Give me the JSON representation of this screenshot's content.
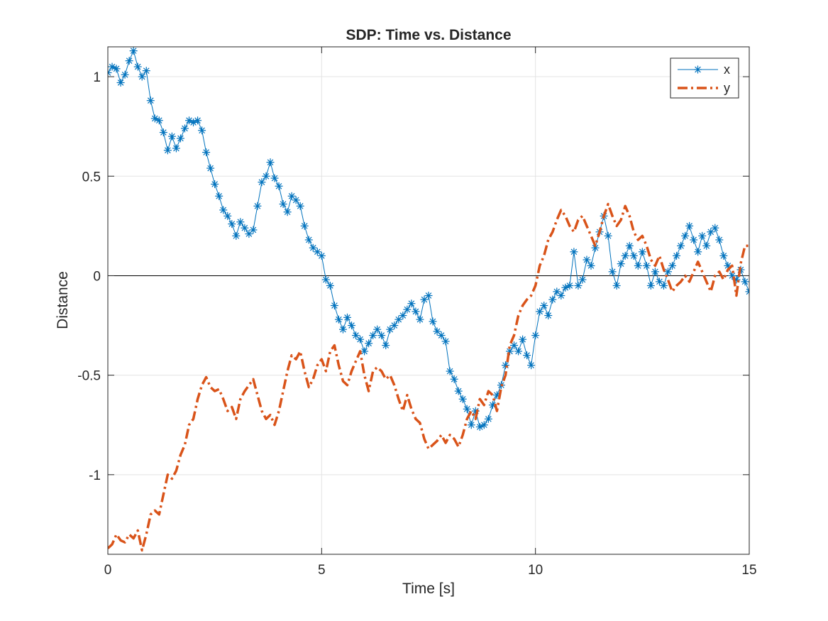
{
  "chart_data": {
    "type": "line",
    "title": "SDP: Time vs. Distance",
    "xlabel": "Time [s]",
    "ylabel": "Distance",
    "xlim": [
      0,
      15
    ],
    "ylim": [
      -1.4,
      1.15
    ],
    "xticks": [
      0,
      5,
      10,
      15
    ],
    "xtick_labels": [
      "0",
      "5",
      "10",
      "15"
    ],
    "yticks": [
      -1,
      -0.5,
      0,
      0.5,
      1
    ],
    "ytick_labels": [
      "-1",
      "-0.5",
      "0",
      "0.5",
      "1"
    ],
    "grid": true,
    "zero_line": true,
    "legend": "top-right",
    "series": [
      {
        "name": "x",
        "color": "#0072bd",
        "line_style": "solid",
        "marker": "asterisk",
        "points": [
          [
            0.0,
            1.02
          ],
          [
            0.1,
            1.05
          ],
          [
            0.2,
            1.04
          ],
          [
            0.3,
            0.97
          ],
          [
            0.4,
            1.01
          ],
          [
            0.5,
            1.08
          ],
          [
            0.6,
            1.13
          ],
          [
            0.7,
            1.05
          ],
          [
            0.8,
            1.0
          ],
          [
            0.9,
            1.03
          ],
          [
            1.0,
            0.88
          ],
          [
            1.1,
            0.79
          ],
          [
            1.2,
            0.78
          ],
          [
            1.3,
            0.72
          ],
          [
            1.4,
            0.63
          ],
          [
            1.5,
            0.7
          ],
          [
            1.6,
            0.64
          ],
          [
            1.7,
            0.69
          ],
          [
            1.8,
            0.74
          ],
          [
            1.9,
            0.78
          ],
          [
            2.0,
            0.77
          ],
          [
            2.1,
            0.78
          ],
          [
            2.2,
            0.73
          ],
          [
            2.3,
            0.62
          ],
          [
            2.4,
            0.54
          ],
          [
            2.5,
            0.46
          ],
          [
            2.6,
            0.4
          ],
          [
            2.7,
            0.33
          ],
          [
            2.8,
            0.3
          ],
          [
            2.9,
            0.26
          ],
          [
            3.0,
            0.2
          ],
          [
            3.1,
            0.27
          ],
          [
            3.2,
            0.24
          ],
          [
            3.3,
            0.21
          ],
          [
            3.4,
            0.23
          ],
          [
            3.5,
            0.35
          ],
          [
            3.6,
            0.47
          ],
          [
            3.7,
            0.5
          ],
          [
            3.8,
            0.57
          ],
          [
            3.9,
            0.49
          ],
          [
            4.0,
            0.45
          ],
          [
            4.1,
            0.36
          ],
          [
            4.2,
            0.32
          ],
          [
            4.3,
            0.4
          ],
          [
            4.4,
            0.38
          ],
          [
            4.5,
            0.35
          ],
          [
            4.6,
            0.25
          ],
          [
            4.7,
            0.18
          ],
          [
            4.8,
            0.14
          ],
          [
            4.9,
            0.12
          ],
          [
            5.0,
            0.1
          ],
          [
            5.1,
            -0.02
          ],
          [
            5.2,
            -0.05
          ],
          [
            5.3,
            -0.15
          ],
          [
            5.4,
            -0.22
          ],
          [
            5.5,
            -0.27
          ],
          [
            5.6,
            -0.21
          ],
          [
            5.7,
            -0.25
          ],
          [
            5.8,
            -0.3
          ],
          [
            5.9,
            -0.32
          ],
          [
            6.0,
            -0.38
          ],
          [
            6.1,
            -0.34
          ],
          [
            6.2,
            -0.3
          ],
          [
            6.3,
            -0.27
          ],
          [
            6.4,
            -0.3
          ],
          [
            6.5,
            -0.35
          ],
          [
            6.6,
            -0.27
          ],
          [
            6.7,
            -0.25
          ],
          [
            6.8,
            -0.22
          ],
          [
            6.9,
            -0.2
          ],
          [
            7.0,
            -0.17
          ],
          [
            7.1,
            -0.14
          ],
          [
            7.2,
            -0.18
          ],
          [
            7.3,
            -0.22
          ],
          [
            7.4,
            -0.12
          ],
          [
            7.5,
            -0.1
          ],
          [
            7.6,
            -0.23
          ],
          [
            7.7,
            -0.28
          ],
          [
            7.8,
            -0.3
          ],
          [
            7.9,
            -0.33
          ],
          [
            8.0,
            -0.48
          ],
          [
            8.1,
            -0.52
          ],
          [
            8.2,
            -0.58
          ],
          [
            8.3,
            -0.62
          ],
          [
            8.4,
            -0.67
          ],
          [
            8.5,
            -0.75
          ],
          [
            8.6,
            -0.68
          ],
          [
            8.7,
            -0.76
          ],
          [
            8.8,
            -0.75
          ],
          [
            8.9,
            -0.72
          ],
          [
            9.0,
            -0.65
          ],
          [
            9.1,
            -0.6
          ],
          [
            9.2,
            -0.55
          ],
          [
            9.3,
            -0.45
          ],
          [
            9.4,
            -0.38
          ],
          [
            9.5,
            -0.35
          ],
          [
            9.6,
            -0.38
          ],
          [
            9.7,
            -0.32
          ],
          [
            9.8,
            -0.4
          ],
          [
            9.9,
            -0.45
          ],
          [
            10.0,
            -0.3
          ],
          [
            10.1,
            -0.18
          ],
          [
            10.2,
            -0.15
          ],
          [
            10.3,
            -0.2
          ],
          [
            10.4,
            -0.12
          ],
          [
            10.5,
            -0.08
          ],
          [
            10.6,
            -0.1
          ],
          [
            10.7,
            -0.06
          ],
          [
            10.8,
            -0.05
          ],
          [
            10.9,
            0.12
          ],
          [
            11.0,
            -0.05
          ],
          [
            11.1,
            -0.02
          ],
          [
            11.2,
            0.08
          ],
          [
            11.3,
            0.05
          ],
          [
            11.4,
            0.14
          ],
          [
            11.5,
            0.22
          ],
          [
            11.6,
            0.3
          ],
          [
            11.7,
            0.2
          ],
          [
            11.8,
            0.02
          ],
          [
            11.9,
            -0.05
          ],
          [
            12.0,
            0.06
          ],
          [
            12.1,
            0.1
          ],
          [
            12.2,
            0.15
          ],
          [
            12.3,
            0.1
          ],
          [
            12.4,
            0.05
          ],
          [
            12.5,
            0.12
          ],
          [
            12.6,
            0.05
          ],
          [
            12.7,
            -0.05
          ],
          [
            12.8,
            0.02
          ],
          [
            12.9,
            -0.03
          ],
          [
            13.0,
            -0.05
          ],
          [
            13.1,
            0.02
          ],
          [
            13.2,
            0.05
          ],
          [
            13.3,
            0.1
          ],
          [
            13.4,
            0.15
          ],
          [
            13.5,
            0.2
          ],
          [
            13.6,
            0.25
          ],
          [
            13.7,
            0.18
          ],
          [
            13.8,
            0.12
          ],
          [
            13.9,
            0.2
          ],
          [
            14.0,
            0.15
          ],
          [
            14.1,
            0.22
          ],
          [
            14.2,
            0.24
          ],
          [
            14.3,
            0.18
          ],
          [
            14.4,
            0.1
          ],
          [
            14.5,
            0.05
          ],
          [
            14.6,
            0.0
          ],
          [
            14.7,
            -0.02
          ],
          [
            14.8,
            0.03
          ],
          [
            14.9,
            -0.03
          ],
          [
            15.0,
            -0.08
          ]
        ]
      },
      {
        "name": "y",
        "color": "#d95319",
        "line_style": "dash-dot",
        "marker": "none",
        "points": [
          [
            0.0,
            -1.37
          ],
          [
            0.1,
            -1.35
          ],
          [
            0.2,
            -1.3
          ],
          [
            0.3,
            -1.33
          ],
          [
            0.4,
            -1.34
          ],
          [
            0.5,
            -1.3
          ],
          [
            0.6,
            -1.32
          ],
          [
            0.7,
            -1.28
          ],
          [
            0.8,
            -1.38
          ],
          [
            0.9,
            -1.3
          ],
          [
            1.0,
            -1.2
          ],
          [
            1.1,
            -1.18
          ],
          [
            1.2,
            -1.2
          ],
          [
            1.3,
            -1.1
          ],
          [
            1.4,
            -1.0
          ],
          [
            1.5,
            -1.02
          ],
          [
            1.6,
            -0.98
          ],
          [
            1.7,
            -0.9
          ],
          [
            1.8,
            -0.85
          ],
          [
            1.9,
            -0.75
          ],
          [
            2.0,
            -0.72
          ],
          [
            2.1,
            -0.62
          ],
          [
            2.2,
            -0.55
          ],
          [
            2.3,
            -0.51
          ],
          [
            2.4,
            -0.56
          ],
          [
            2.5,
            -0.58
          ],
          [
            2.6,
            -0.57
          ],
          [
            2.7,
            -0.62
          ],
          [
            2.8,
            -0.68
          ],
          [
            2.9,
            -0.66
          ],
          [
            3.0,
            -0.72
          ],
          [
            3.1,
            -0.62
          ],
          [
            3.2,
            -0.58
          ],
          [
            3.3,
            -0.55
          ],
          [
            3.4,
            -0.52
          ],
          [
            3.5,
            -0.6
          ],
          [
            3.6,
            -0.68
          ],
          [
            3.7,
            -0.72
          ],
          [
            3.8,
            -0.7
          ],
          [
            3.9,
            -0.75
          ],
          [
            4.0,
            -0.68
          ],
          [
            4.1,
            -0.58
          ],
          [
            4.2,
            -0.48
          ],
          [
            4.3,
            -0.4
          ],
          [
            4.4,
            -0.42
          ],
          [
            4.5,
            -0.38
          ],
          [
            4.6,
            -0.48
          ],
          [
            4.7,
            -0.56
          ],
          [
            4.8,
            -0.52
          ],
          [
            4.9,
            -0.45
          ],
          [
            5.0,
            -0.42
          ],
          [
            5.1,
            -0.48
          ],
          [
            5.2,
            -0.38
          ],
          [
            5.3,
            -0.35
          ],
          [
            5.4,
            -0.45
          ],
          [
            5.5,
            -0.53
          ],
          [
            5.6,
            -0.55
          ],
          [
            5.7,
            -0.48
          ],
          [
            5.8,
            -0.43
          ],
          [
            5.9,
            -0.38
          ],
          [
            6.0,
            -0.5
          ],
          [
            6.1,
            -0.58
          ],
          [
            6.2,
            -0.48
          ],
          [
            6.3,
            -0.46
          ],
          [
            6.4,
            -0.48
          ],
          [
            6.5,
            -0.52
          ],
          [
            6.6,
            -0.5
          ],
          [
            6.7,
            -0.55
          ],
          [
            6.8,
            -0.62
          ],
          [
            6.9,
            -0.68
          ],
          [
            7.0,
            -0.6
          ],
          [
            7.1,
            -0.67
          ],
          [
            7.2,
            -0.72
          ],
          [
            7.3,
            -0.74
          ],
          [
            7.4,
            -0.82
          ],
          [
            7.5,
            -0.87
          ],
          [
            7.6,
            -0.85
          ],
          [
            7.7,
            -0.83
          ],
          [
            7.8,
            -0.8
          ],
          [
            7.9,
            -0.84
          ],
          [
            8.0,
            -0.8
          ],
          [
            8.1,
            -0.82
          ],
          [
            8.2,
            -0.86
          ],
          [
            8.3,
            -0.8
          ],
          [
            8.4,
            -0.72
          ],
          [
            8.5,
            -0.68
          ],
          [
            8.6,
            -0.72
          ],
          [
            8.7,
            -0.62
          ],
          [
            8.8,
            -0.65
          ],
          [
            8.9,
            -0.58
          ],
          [
            9.0,
            -0.6
          ],
          [
            9.1,
            -0.68
          ],
          [
            9.2,
            -0.56
          ],
          [
            9.3,
            -0.5
          ],
          [
            9.4,
            -0.35
          ],
          [
            9.5,
            -0.3
          ],
          [
            9.6,
            -0.2
          ],
          [
            9.7,
            -0.15
          ],
          [
            9.8,
            -0.12
          ],
          [
            9.9,
            -0.1
          ],
          [
            10.0,
            -0.05
          ],
          [
            10.1,
            0.05
          ],
          [
            10.2,
            0.1
          ],
          [
            10.3,
            0.18
          ],
          [
            10.4,
            0.22
          ],
          [
            10.5,
            0.28
          ],
          [
            10.6,
            0.33
          ],
          [
            10.7,
            0.3
          ],
          [
            10.8,
            0.25
          ],
          [
            10.9,
            0.22
          ],
          [
            11.0,
            0.28
          ],
          [
            11.1,
            0.3
          ],
          [
            11.2,
            0.25
          ],
          [
            11.3,
            0.2
          ],
          [
            11.4,
            0.15
          ],
          [
            11.5,
            0.22
          ],
          [
            11.6,
            0.3
          ],
          [
            11.7,
            0.36
          ],
          [
            11.8,
            0.3
          ],
          [
            11.9,
            0.25
          ],
          [
            12.0,
            0.28
          ],
          [
            12.1,
            0.35
          ],
          [
            12.2,
            0.3
          ],
          [
            12.3,
            0.22
          ],
          [
            12.4,
            0.18
          ],
          [
            12.5,
            0.2
          ],
          [
            12.6,
            0.15
          ],
          [
            12.7,
            0.08
          ],
          [
            12.8,
            0.05
          ],
          [
            12.9,
            0.1
          ],
          [
            13.0,
            0.03
          ],
          [
            13.1,
            -0.02
          ],
          [
            13.2,
            -0.08
          ],
          [
            13.3,
            -0.05
          ],
          [
            13.4,
            -0.03
          ],
          [
            13.5,
            0.0
          ],
          [
            13.6,
            -0.03
          ],
          [
            13.7,
            0.02
          ],
          [
            13.8,
            0.07
          ],
          [
            13.9,
            0.02
          ],
          [
            14.0,
            -0.03
          ],
          [
            14.1,
            -0.08
          ],
          [
            14.2,
            0.0
          ],
          [
            14.3,
            0.02
          ],
          [
            14.4,
            -0.02
          ],
          [
            14.5,
            0.03
          ],
          [
            14.6,
            0.05
          ],
          [
            14.7,
            -0.1
          ],
          [
            14.8,
            0.06
          ],
          [
            14.9,
            0.15
          ],
          [
            15.0,
            0.15
          ]
        ]
      }
    ]
  }
}
